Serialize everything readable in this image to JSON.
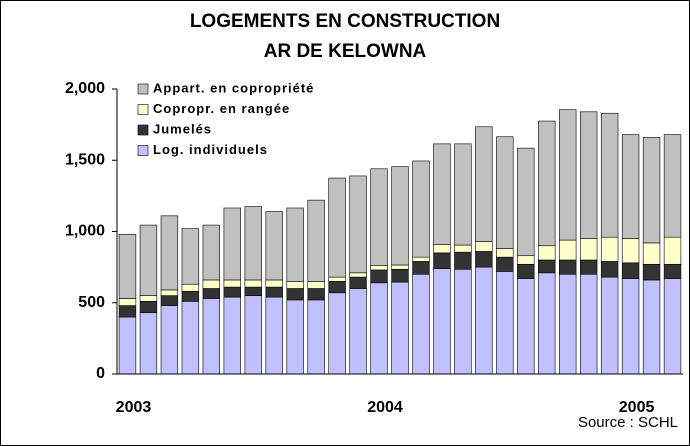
{
  "chart_data": {
    "type": "bar",
    "stacked": true,
    "title": [
      "LOGEMENTS EN CONSTRUCTION",
      "AR DE KELOWNA"
    ],
    "annotation": "Source : SCHL",
    "categories": [
      "2003",
      null,
      null,
      null,
      null,
      null,
      null,
      null,
      null,
      null,
      null,
      null,
      "2004",
      null,
      null,
      null,
      null,
      null,
      null,
      null,
      null,
      null,
      null,
      null,
      "2005",
      null,
      null
    ],
    "series": [
      {
        "name": "Log. individuels",
        "color": "#c0c0ff",
        "values": [
          400,
          430,
          480,
          510,
          530,
          540,
          550,
          540,
          520,
          520,
          570,
          600,
          640,
          645,
          700,
          740,
          735,
          750,
          720,
          670,
          710,
          700,
          700,
          680,
          670,
          660,
          670
        ]
      },
      {
        "name": "Jumelés",
        "color": "#333333",
        "values": [
          80,
          80,
          70,
          70,
          70,
          70,
          60,
          70,
          80,
          80,
          80,
          80,
          90,
          90,
          90,
          110,
          120,
          110,
          100,
          100,
          90,
          100,
          100,
          110,
          110,
          110,
          100
        ]
      },
      {
        "name": "Copropr. en rangée",
        "color": "#ffffcc",
        "values": [
          50,
          40,
          40,
          50,
          60,
          50,
          50,
          50,
          50,
          50,
          30,
          30,
          30,
          30,
          30,
          60,
          50,
          70,
          60,
          60,
          100,
          140,
          150,
          170,
          170,
          150,
          190
        ]
      },
      {
        "name": "Appart. en copropriété",
        "color": "#c0c0c0",
        "values": [
          450,
          495,
          520,
          390,
          385,
          505,
          515,
          480,
          515,
          570,
          695,
          680,
          680,
          690,
          675,
          705,
          710,
          805,
          785,
          755,
          875,
          915,
          890,
          870,
          730,
          740,
          720
        ]
      }
    ],
    "ylim": [
      0,
      2000
    ],
    "yticks": [
      0,
      500,
      {
        "value": 1000,
        "label": "1,000"
      },
      {
        "value": 1500,
        "label": "1,500"
      },
      {
        "value": 2000,
        "label": "2,000"
      }
    ],
    "grid": false
  }
}
